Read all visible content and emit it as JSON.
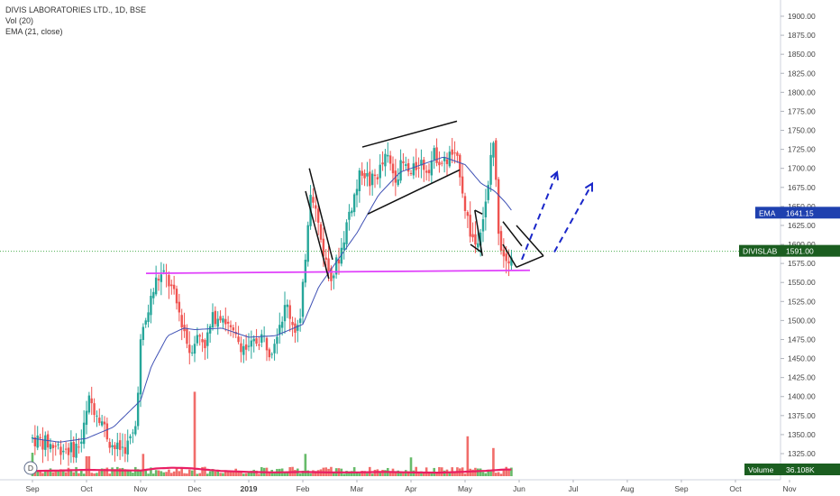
{
  "legend": {
    "title": "DIVIS LABORATORIES LTD., 1D, BSE",
    "vol": "Vol (20)",
    "ema": "EMA (21, close)"
  },
  "badges": {
    "ema_name": "EMA",
    "ema_value": "1641.15",
    "price_name": "DIVISLAB",
    "price_value": "1591.00",
    "volume_name": "Volume",
    "volume_value": "36.108K",
    "marker": "D"
  },
  "colors": {
    "up": "#26a69a",
    "down": "#ef5350",
    "vol_up": "#4caf50",
    "vol_down": "#ef5350",
    "ema": "#3f51b5",
    "support": "#e040fb",
    "current_price_line": "#4caf50",
    "vol_ma": "#e91e63",
    "projection": "#1a27c9",
    "pattern": "#111111",
    "ema_badge": "#1e40af",
    "price_badge": "#1b5e20"
  },
  "chart_data": {
    "type": "candlestick",
    "symbol": "DIVISLAB",
    "interval": "1D",
    "y_axis": {
      "ticks": [
        1900,
        1875,
        1850,
        1825,
        1800,
        1775,
        1750,
        1725,
        1700,
        1675,
        1650,
        1625,
        1600,
        1575,
        1550,
        1525,
        1500,
        1475,
        1450,
        1425,
        1400,
        1375,
        1350,
        1325
      ],
      "ylim": [
        1305,
        1912
      ]
    },
    "x_axis": {
      "labels": [
        "Sep",
        "Oct",
        "Nov",
        "Dec",
        "2019",
        "Feb",
        "Mar",
        "Apr",
        "May",
        "Jun",
        "Jul",
        "Aug",
        "Sep",
        "Oct",
        "Nov"
      ],
      "month_index": [
        0,
        1,
        2,
        3,
        4,
        5,
        6,
        7,
        8,
        9,
        10,
        11,
        12,
        13,
        14
      ]
    },
    "price_anchors": [
      [
        0,
        1345
      ],
      [
        0.4,
        1335
      ],
      [
        0.75,
        1330
      ],
      [
        0.9,
        1340
      ],
      [
        1.05,
        1395
      ],
      [
        1.25,
        1375
      ],
      [
        1.4,
        1345
      ],
      [
        1.55,
        1330
      ],
      [
        1.75,
        1335
      ],
      [
        1.9,
        1355
      ],
      [
        2.0,
        1470
      ],
      [
        2.1,
        1500
      ],
      [
        2.2,
        1530
      ],
      [
        2.3,
        1555
      ],
      [
        2.45,
        1560
      ],
      [
        2.55,
        1545
      ],
      [
        2.65,
        1525
      ],
      [
        2.8,
        1490
      ],
      [
        2.9,
        1460
      ],
      [
        3.0,
        1475
      ],
      [
        3.1,
        1480
      ],
      [
        3.2,
        1470
      ],
      [
        3.35,
        1505
      ],
      [
        3.5,
        1510
      ],
      [
        3.6,
        1495
      ],
      [
        3.7,
        1480
      ],
      [
        3.85,
        1470
      ],
      [
        4.0,
        1460
      ],
      [
        4.1,
        1470
      ],
      [
        4.25,
        1480
      ],
      [
        4.4,
        1460
      ],
      [
        4.55,
        1495
      ],
      [
        4.7,
        1520
      ],
      [
        4.85,
        1490
      ],
      [
        4.95,
        1495
      ],
      [
        5.0,
        1540
      ],
      [
        5.08,
        1620
      ],
      [
        5.15,
        1680
      ],
      [
        5.25,
        1640
      ],
      [
        5.35,
        1600
      ],
      [
        5.45,
        1570
      ],
      [
        5.55,
        1560
      ],
      [
        5.7,
        1590
      ],
      [
        5.85,
        1640
      ],
      [
        6.0,
        1675
      ],
      [
        6.1,
        1700
      ],
      [
        6.25,
        1680
      ],
      [
        6.4,
        1695
      ],
      [
        6.55,
        1715
      ],
      [
        6.7,
        1690
      ],
      [
        6.85,
        1705
      ],
      [
        7.0,
        1690
      ],
      [
        7.15,
        1710
      ],
      [
        7.3,
        1700
      ],
      [
        7.45,
        1720
      ],
      [
        7.6,
        1705
      ],
      [
        7.75,
        1720
      ],
      [
        7.9,
        1700
      ],
      [
        8.0,
        1650
      ],
      [
        8.1,
        1615
      ],
      [
        8.2,
        1600
      ],
      [
        8.28,
        1625
      ],
      [
        8.35,
        1640
      ],
      [
        8.42,
        1665
      ],
      [
        8.48,
        1720
      ],
      [
        8.52,
        1740
      ],
      [
        8.57,
        1680
      ],
      [
        8.63,
        1610
      ],
      [
        8.7,
        1590
      ],
      [
        8.8,
        1585
      ],
      [
        8.9,
        1591
      ]
    ],
    "ema_anchors": [
      [
        0,
        1345
      ],
      [
        0.5,
        1340
      ],
      [
        1.0,
        1345
      ],
      [
        1.5,
        1360
      ],
      [
        2.0,
        1395
      ],
      [
        2.2,
        1440
      ],
      [
        2.5,
        1480
      ],
      [
        2.8,
        1490
      ],
      [
        3.0,
        1488
      ],
      [
        3.5,
        1490
      ],
      [
        4.0,
        1478
      ],
      [
        4.5,
        1480
      ],
      [
        5.0,
        1495
      ],
      [
        5.3,
        1545
      ],
      [
        5.6,
        1575
      ],
      [
        6.0,
        1615
      ],
      [
        6.4,
        1665
      ],
      [
        6.8,
        1695
      ],
      [
        7.2,
        1705
      ],
      [
        7.6,
        1715
      ],
      [
        8.0,
        1705
      ],
      [
        8.3,
        1680
      ],
      [
        8.55,
        1670
      ],
      [
        8.75,
        1655
      ],
      [
        8.9,
        1641
      ]
    ],
    "volume_ma_anchors": [
      [
        0,
        0.22
      ],
      [
        0.5,
        0.24
      ],
      [
        1.0,
        0.27
      ],
      [
        1.5,
        0.25
      ],
      [
        2.0,
        0.24
      ],
      [
        2.3,
        0.33
      ],
      [
        2.6,
        0.36
      ],
      [
        2.9,
        0.34
      ],
      [
        3.2,
        0.28
      ],
      [
        3.5,
        0.22
      ],
      [
        4.0,
        0.18
      ],
      [
        4.5,
        0.16
      ],
      [
        5.0,
        0.18
      ],
      [
        5.5,
        0.16
      ],
      [
        6.0,
        0.16
      ],
      [
        6.5,
        0.18
      ],
      [
        7.0,
        0.16
      ],
      [
        7.5,
        0.15
      ],
      [
        8.0,
        0.19
      ],
      [
        8.4,
        0.23
      ],
      [
        8.7,
        0.28
      ],
      [
        8.9,
        0.28
      ]
    ],
    "volume_spikes": [
      {
        "x": 0.0,
        "v": 1.0,
        "dir": "up"
      },
      {
        "x": 1.02,
        "v": 0.85,
        "dir": "down"
      },
      {
        "x": 2.05,
        "v": 0.95,
        "dir": "down"
      },
      {
        "x": 3.0,
        "v": 3.6,
        "dir": "down"
      },
      {
        "x": 5.05,
        "v": 0.95,
        "dir": "up"
      },
      {
        "x": 7.0,
        "v": 0.8,
        "dir": "up"
      },
      {
        "x": 8.05,
        "v": 1.7,
        "dir": "down"
      },
      {
        "x": 8.52,
        "v": 1.2,
        "dir": "down"
      }
    ],
    "annotations": {
      "support_line": {
        "x1": 2.1,
        "y1": 1562,
        "x2": 9.2,
        "y2": 1566
      },
      "current_price": 1591.0,
      "patterns": [
        {
          "x1": 5.12,
          "y1": 1700,
          "x2": 5.55,
          "y2": 1580
        },
        {
          "x1": 5.05,
          "y1": 1670,
          "x2": 5.48,
          "y2": 1555
        },
        {
          "x1": 6.1,
          "y1": 1728,
          "x2": 7.85,
          "y2": 1762
        },
        {
          "x1": 6.2,
          "y1": 1640,
          "x2": 7.9,
          "y2": 1698
        },
        {
          "x1": 8.18,
          "y1": 1645,
          "x2": 8.32,
          "y2": 1640
        },
        {
          "x1": 8.18,
          "y1": 1645,
          "x2": 8.32,
          "y2": 1585
        },
        {
          "x1": 8.1,
          "y1": 1600,
          "x2": 8.3,
          "y2": 1590
        },
        {
          "x1": 8.7,
          "y1": 1630,
          "x2": 9.05,
          "y2": 1598
        },
        {
          "x1": 8.7,
          "y1": 1600,
          "x2": 8.95,
          "y2": 1570
        },
        {
          "x1": 8.95,
          "y1": 1570,
          "x2": 9.45,
          "y2": 1585
        },
        {
          "x1": 8.95,
          "y1": 1625,
          "x2": 9.45,
          "y2": 1585
        }
      ],
      "projections": [
        {
          "x1": 9.05,
          "y1": 1580,
          "x2": 9.7,
          "y2": 1695
        },
        {
          "x1": 9.65,
          "y1": 1590,
          "x2": 10.35,
          "y2": 1680
        }
      ]
    }
  }
}
